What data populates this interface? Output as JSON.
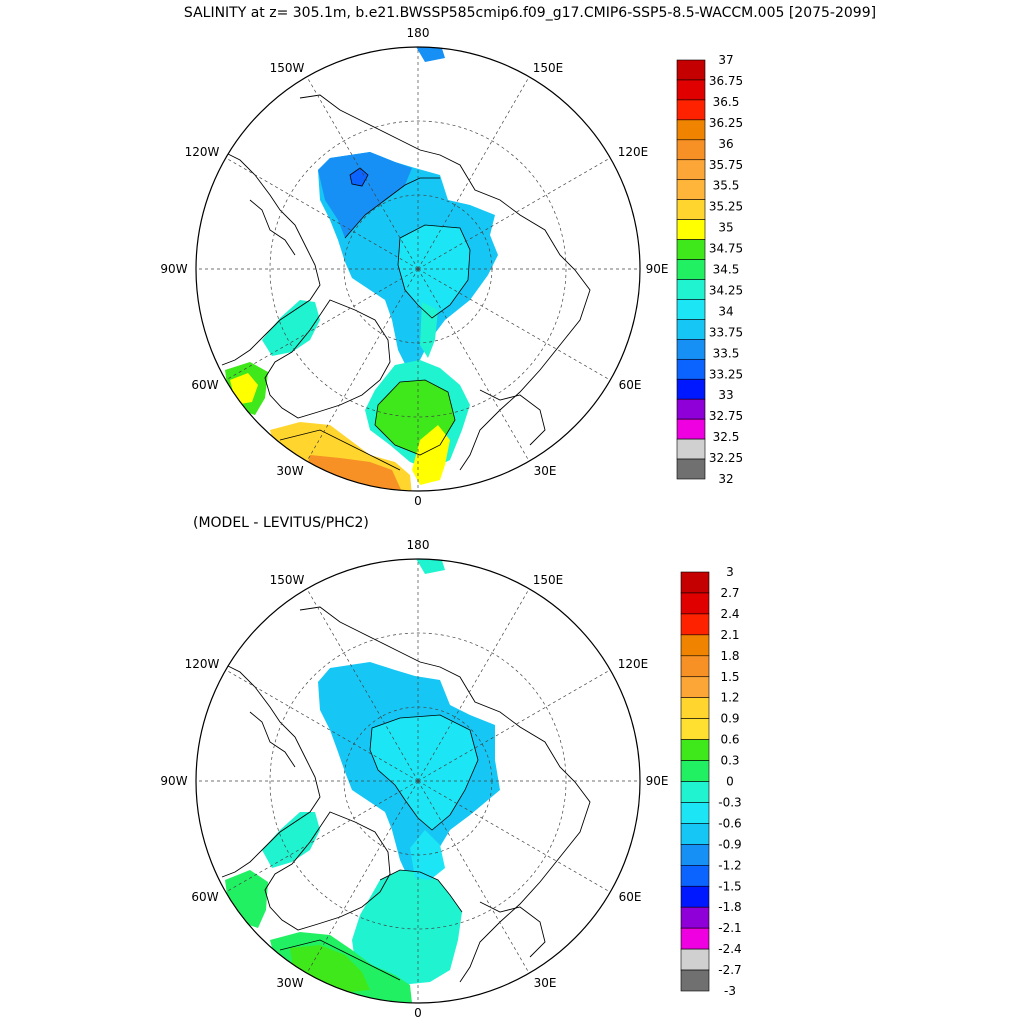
{
  "title": "SALINITY at z= 305.1m, b.e21.BWSSP585cmip6.f09_g17.CMIP6-SSP5-8.5-WACCM.005 [2075-2099]",
  "subtitle": "(MODEL - LEVITUS/PHC2)",
  "longitude_labels": [
    "180",
    "150E",
    "120E",
    "90E",
    "60E",
    "30E",
    "0",
    "30W",
    "60W",
    "90W",
    "120W",
    "150W"
  ],
  "colors": {
    "land_line": "#000000",
    "grid": "#333333",
    "ice_free_ocean": "#ffffff"
  },
  "top_panel": {
    "colorbar": {
      "labels": [
        "37",
        "36.75",
        "36.5",
        "36.25",
        "36",
        "35.75",
        "35.5",
        "35.25",
        "35",
        "34.75",
        "34.5",
        "34.25",
        "34",
        "33.75",
        "33.5",
        "33.25",
        "33",
        "32.75",
        "32.5",
        "32.25",
        "32"
      ],
      "colors": [
        "#c40000",
        "#e00000",
        "#ff2200",
        "#f08400",
        "#f79025",
        "#fba636",
        "#ffb43a",
        "#ffd52e",
        "#ffff00",
        "#3ee81a",
        "#21f063",
        "#20f3d0",
        "#1ce5f5",
        "#16c7f5",
        "#1690f5",
        "#0b64ff",
        "#0018ff",
        "#8f00d8",
        "#ee00e0",
        "#d0d0d0",
        "#707070"
      ]
    }
  },
  "bottom_panel": {
    "colorbar": {
      "labels": [
        "3",
        "2.7",
        "2.4",
        "2.1",
        "1.8",
        "1.5",
        "1.2",
        "0.9",
        "0.6",
        "0.3",
        "0",
        "-0.3",
        "-0.6",
        "-0.9",
        "-1.2",
        "-1.5",
        "-1.8",
        "-2.1",
        "-2.4",
        "-2.7",
        "-3"
      ],
      "colors": [
        "#c40000",
        "#e00000",
        "#ff2200",
        "#f08400",
        "#f79025",
        "#fba636",
        "#ffd52e",
        "#ffe030",
        "#3ee81a",
        "#21f063",
        "#20f3d0",
        "#1ce5f5",
        "#16c7f5",
        "#1690f5",
        "#0b64ff",
        "#0018ff",
        "#8f00d8",
        "#ee00e0",
        "#d0d0d0",
        "#707070"
      ]
    }
  }
}
